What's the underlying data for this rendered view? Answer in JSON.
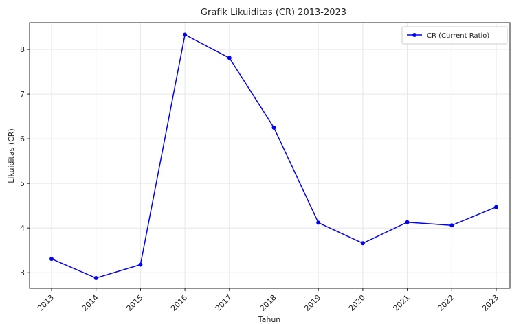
{
  "chart_data": {
    "type": "line",
    "title": "Grafik Likuiditas (CR) 2013-2023",
    "xlabel": "Tahun",
    "ylabel": "Likuiditas (CR)",
    "categories": [
      "2013",
      "2014",
      "2015",
      "2016",
      "2017",
      "2018",
      "2019",
      "2020",
      "2021",
      "2022",
      "2023"
    ],
    "series": [
      {
        "name": "CR (Current Ratio)",
        "color": "#0000ff",
        "marker": "circle",
        "values": [
          3.31,
          2.88,
          3.18,
          8.33,
          7.81,
          6.25,
          4.12,
          3.66,
          4.13,
          4.06,
          4.47
        ]
      }
    ],
    "yticks": [
      "3",
      "4",
      "5",
      "6",
      "7",
      "8"
    ],
    "ylim": [
      2.65,
      8.6
    ],
    "grid": true,
    "legend": "top-right"
  }
}
